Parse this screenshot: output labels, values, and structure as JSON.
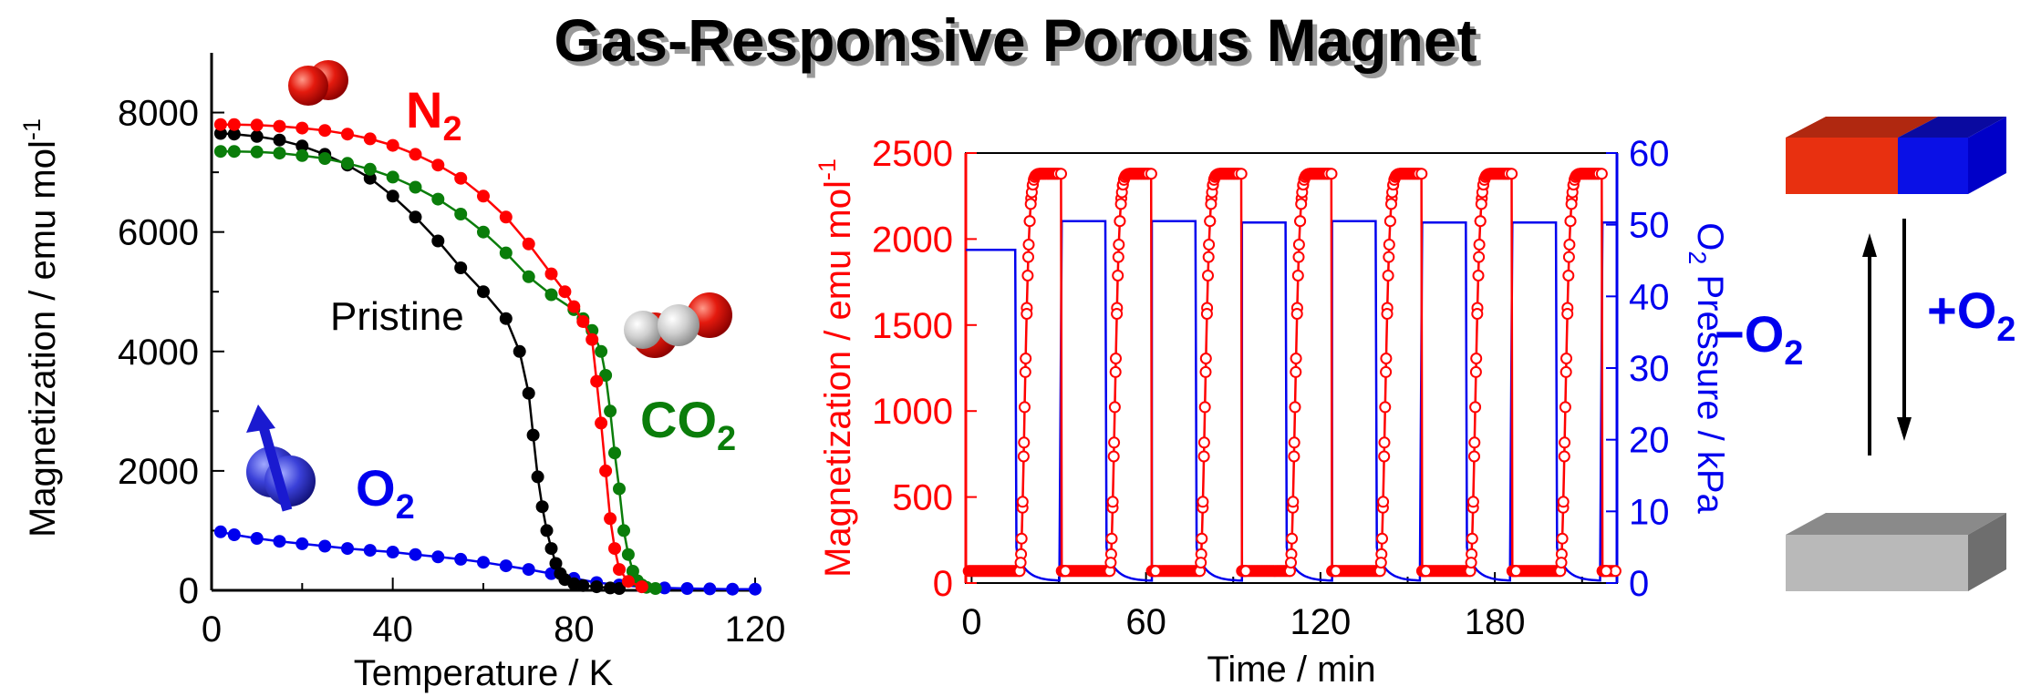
{
  "title": "Gas-Responsive Porous Magnet",
  "colors": {
    "red": "#ff0000",
    "blue": "#0000ee",
    "green": "#0a7d0a",
    "black": "#000000",
    "magnet_red": "#e83010",
    "magnet_blue": "#0a10e6",
    "magnet_gray": "#9a9a9a"
  },
  "chart_data": [
    {
      "type": "scatter",
      "xlabel": "Temperature / K",
      "ylabel": "Magnetization / emu mol",
      "ylabel_sup": "-1",
      "xlim": [
        0,
        120
      ],
      "ylim": [
        0,
        9000
      ],
      "xticks": [
        0,
        40,
        80,
        120
      ],
      "yticks": [
        0,
        2000,
        4000,
        6000,
        8000
      ],
      "series": [
        {
          "name": "N2",
          "label_main": "N",
          "label_sub": "2",
          "color": "red",
          "x": [
            2,
            5,
            10,
            15,
            20,
            25,
            30,
            35,
            40,
            45,
            50,
            55,
            60,
            65,
            70,
            75,
            78,
            80,
            82,
            84,
            85,
            86,
            87,
            88,
            89,
            90,
            92,
            95
          ],
          "y": [
            7800,
            7800,
            7790,
            7770,
            7740,
            7700,
            7640,
            7560,
            7450,
            7300,
            7120,
            6900,
            6600,
            6250,
            5800,
            5300,
            5000,
            4750,
            4500,
            4200,
            3500,
            2800,
            2000,
            1200,
            700,
            350,
            150,
            60
          ]
        },
        {
          "name": "CO2",
          "label_main": "CO",
          "label_sub": "2",
          "color": "green",
          "x": [
            2,
            5,
            10,
            15,
            20,
            25,
            30,
            35,
            40,
            45,
            50,
            55,
            60,
            65,
            70,
            75,
            80,
            82,
            84,
            86,
            87,
            88,
            89,
            90,
            91,
            92,
            93,
            94,
            95,
            96,
            98
          ],
          "y": [
            7350,
            7350,
            7340,
            7320,
            7280,
            7230,
            7150,
            7050,
            6920,
            6750,
            6550,
            6300,
            6000,
            5650,
            5250,
            4950,
            4700,
            4550,
            4350,
            4000,
            3600,
            3000,
            2300,
            1700,
            1000,
            600,
            320,
            160,
            90,
            50,
            30
          ]
        },
        {
          "name": "Pristine",
          "label_main": "Pristine",
          "label_sub": "",
          "color": "black",
          "x": [
            2,
            5,
            10,
            15,
            20,
            25,
            30,
            35,
            40,
            45,
            50,
            55,
            60,
            65,
            68,
            70,
            71,
            72,
            73,
            74,
            75,
            76,
            77,
            78,
            80,
            82,
            85,
            88,
            90
          ],
          "y": [
            7650,
            7640,
            7600,
            7540,
            7440,
            7300,
            7120,
            6900,
            6600,
            6250,
            5850,
            5400,
            5000,
            4550,
            4000,
            3300,
            2600,
            1900,
            1400,
            1000,
            700,
            450,
            280,
            180,
            110,
            80,
            60,
            40,
            30
          ]
        },
        {
          "name": "O2",
          "label_main": "O",
          "label_sub": "2",
          "color": "blue",
          "x": [
            2,
            5,
            10,
            15,
            20,
            25,
            30,
            35,
            40,
            45,
            50,
            55,
            60,
            65,
            70,
            75,
            80,
            85,
            90,
            95,
            100,
            105,
            110,
            115,
            120
          ],
          "y": [
            980,
            930,
            870,
            820,
            780,
            740,
            700,
            670,
            640,
            600,
            560,
            520,
            470,
            410,
            350,
            280,
            200,
            130,
            90,
            60,
            40,
            30,
            25,
            20,
            20
          ]
        }
      ]
    },
    {
      "type": "line",
      "xlabel": "Time / min",
      "ylabel_left": "Magnetization / emu mol",
      "ylabel_left_sup": "-1",
      "ylabel_right_main": "O",
      "ylabel_right_sub": "2",
      "ylabel_right_rest": " Pressure / kPa",
      "xlim": [
        -2,
        222
      ],
      "ylim_left": [
        0,
        2500
      ],
      "ylim_right": [
        0,
        60
      ],
      "xticks": [
        0,
        60,
        120,
        180
      ],
      "yticks_left": [
        0,
        500,
        1000,
        1500,
        2000,
        2500
      ],
      "yticks_right": [
        0,
        10,
        20,
        30,
        40,
        50,
        60
      ],
      "cycles": [
        {
          "on": 0,
          "off": 15,
          "pressure": 46.5
        },
        {
          "on": 31,
          "off": 46,
          "pressure": 50.5
        },
        {
          "on": 62,
          "off": 77,
          "pressure": 50.5
        },
        {
          "on": 93,
          "off": 108,
          "pressure": 50.3
        },
        {
          "on": 124,
          "off": 139,
          "pressure": 50.5
        },
        {
          "on": 155,
          "off": 170,
          "pressure": 50.3
        },
        {
          "on": 186,
          "off": 201,
          "pressure": 50.3
        },
        {
          "on": 217,
          "off": 222,
          "pressure": 50.3
        }
      ],
      "magnetization": {
        "name": "Magnetization",
        "color": "red",
        "baseline": 70,
        "max": 2380,
        "rise_duration": 15
      },
      "pressure": {
        "name": "O2 Pressure",
        "color": "blue"
      }
    }
  ],
  "schematic": {
    "remove_label_main": "−O",
    "remove_label_sub": "2",
    "add_label_main": "+O",
    "add_label_sub": "2",
    "top_magnet": "magnetized",
    "bottom_magnet": "non-magnetic"
  }
}
